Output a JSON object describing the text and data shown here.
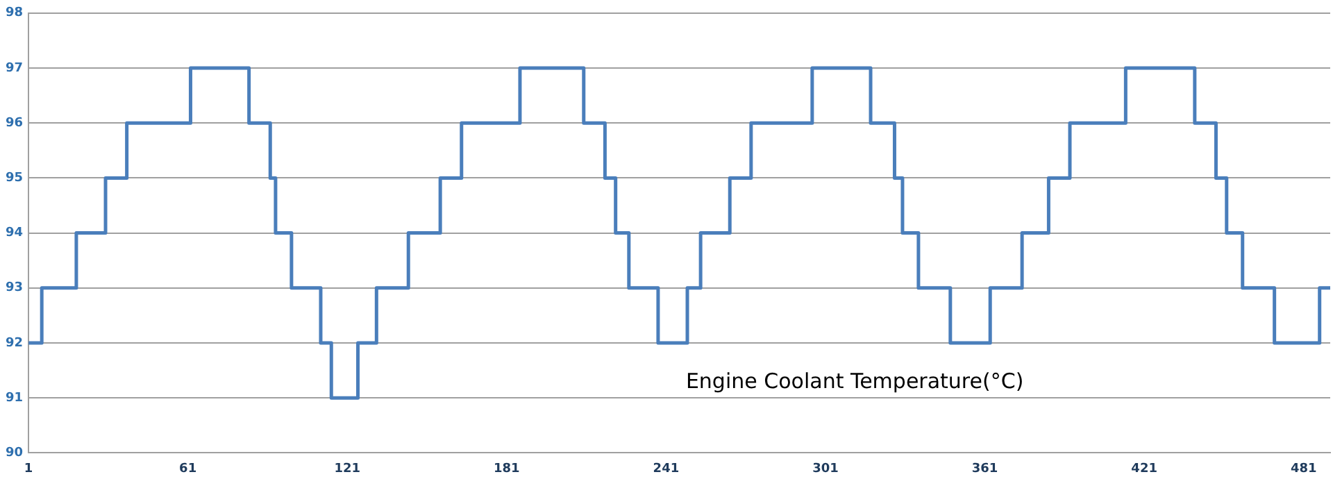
{
  "chart_data": {
    "type": "step",
    "annotations": [
      "Engine Coolant Temperature(°C)"
    ],
    "xlim": [
      1,
      491
    ],
    "xticks": [
      1,
      61,
      121,
      181,
      241,
      301,
      361,
      421,
      481
    ],
    "ylim": [
      90,
      98
    ],
    "yticks": [
      90,
      91,
      92,
      93,
      94,
      95,
      96,
      97,
      98
    ],
    "grid": "y",
    "legend": false,
    "series": [
      {
        "color": "#4a7ebb",
        "x": [
          1,
          6,
          19,
          30,
          38,
          62,
          84,
          92,
          94,
          100,
          111,
          115,
          125,
          132,
          144,
          156,
          164,
          186,
          210,
          218,
          222,
          227,
          238,
          249,
          254,
          265,
          273,
          296,
          318,
          327,
          330,
          336,
          348,
          363,
          375,
          385,
          393,
          414,
          440,
          448,
          452,
          458,
          470,
          487,
          491
        ],
        "values": [
          92,
          93,
          94,
          95,
          96,
          97,
          96,
          95,
          94,
          93,
          92,
          91,
          92,
          93,
          94,
          95,
          96,
          97,
          96,
          95,
          94,
          93,
          92,
          93,
          94,
          95,
          96,
          97,
          96,
          95,
          94,
          93,
          92,
          93,
          94,
          95,
          96,
          97,
          96,
          95,
          94,
          93,
          92,
          93,
          93
        ]
      }
    ]
  }
}
